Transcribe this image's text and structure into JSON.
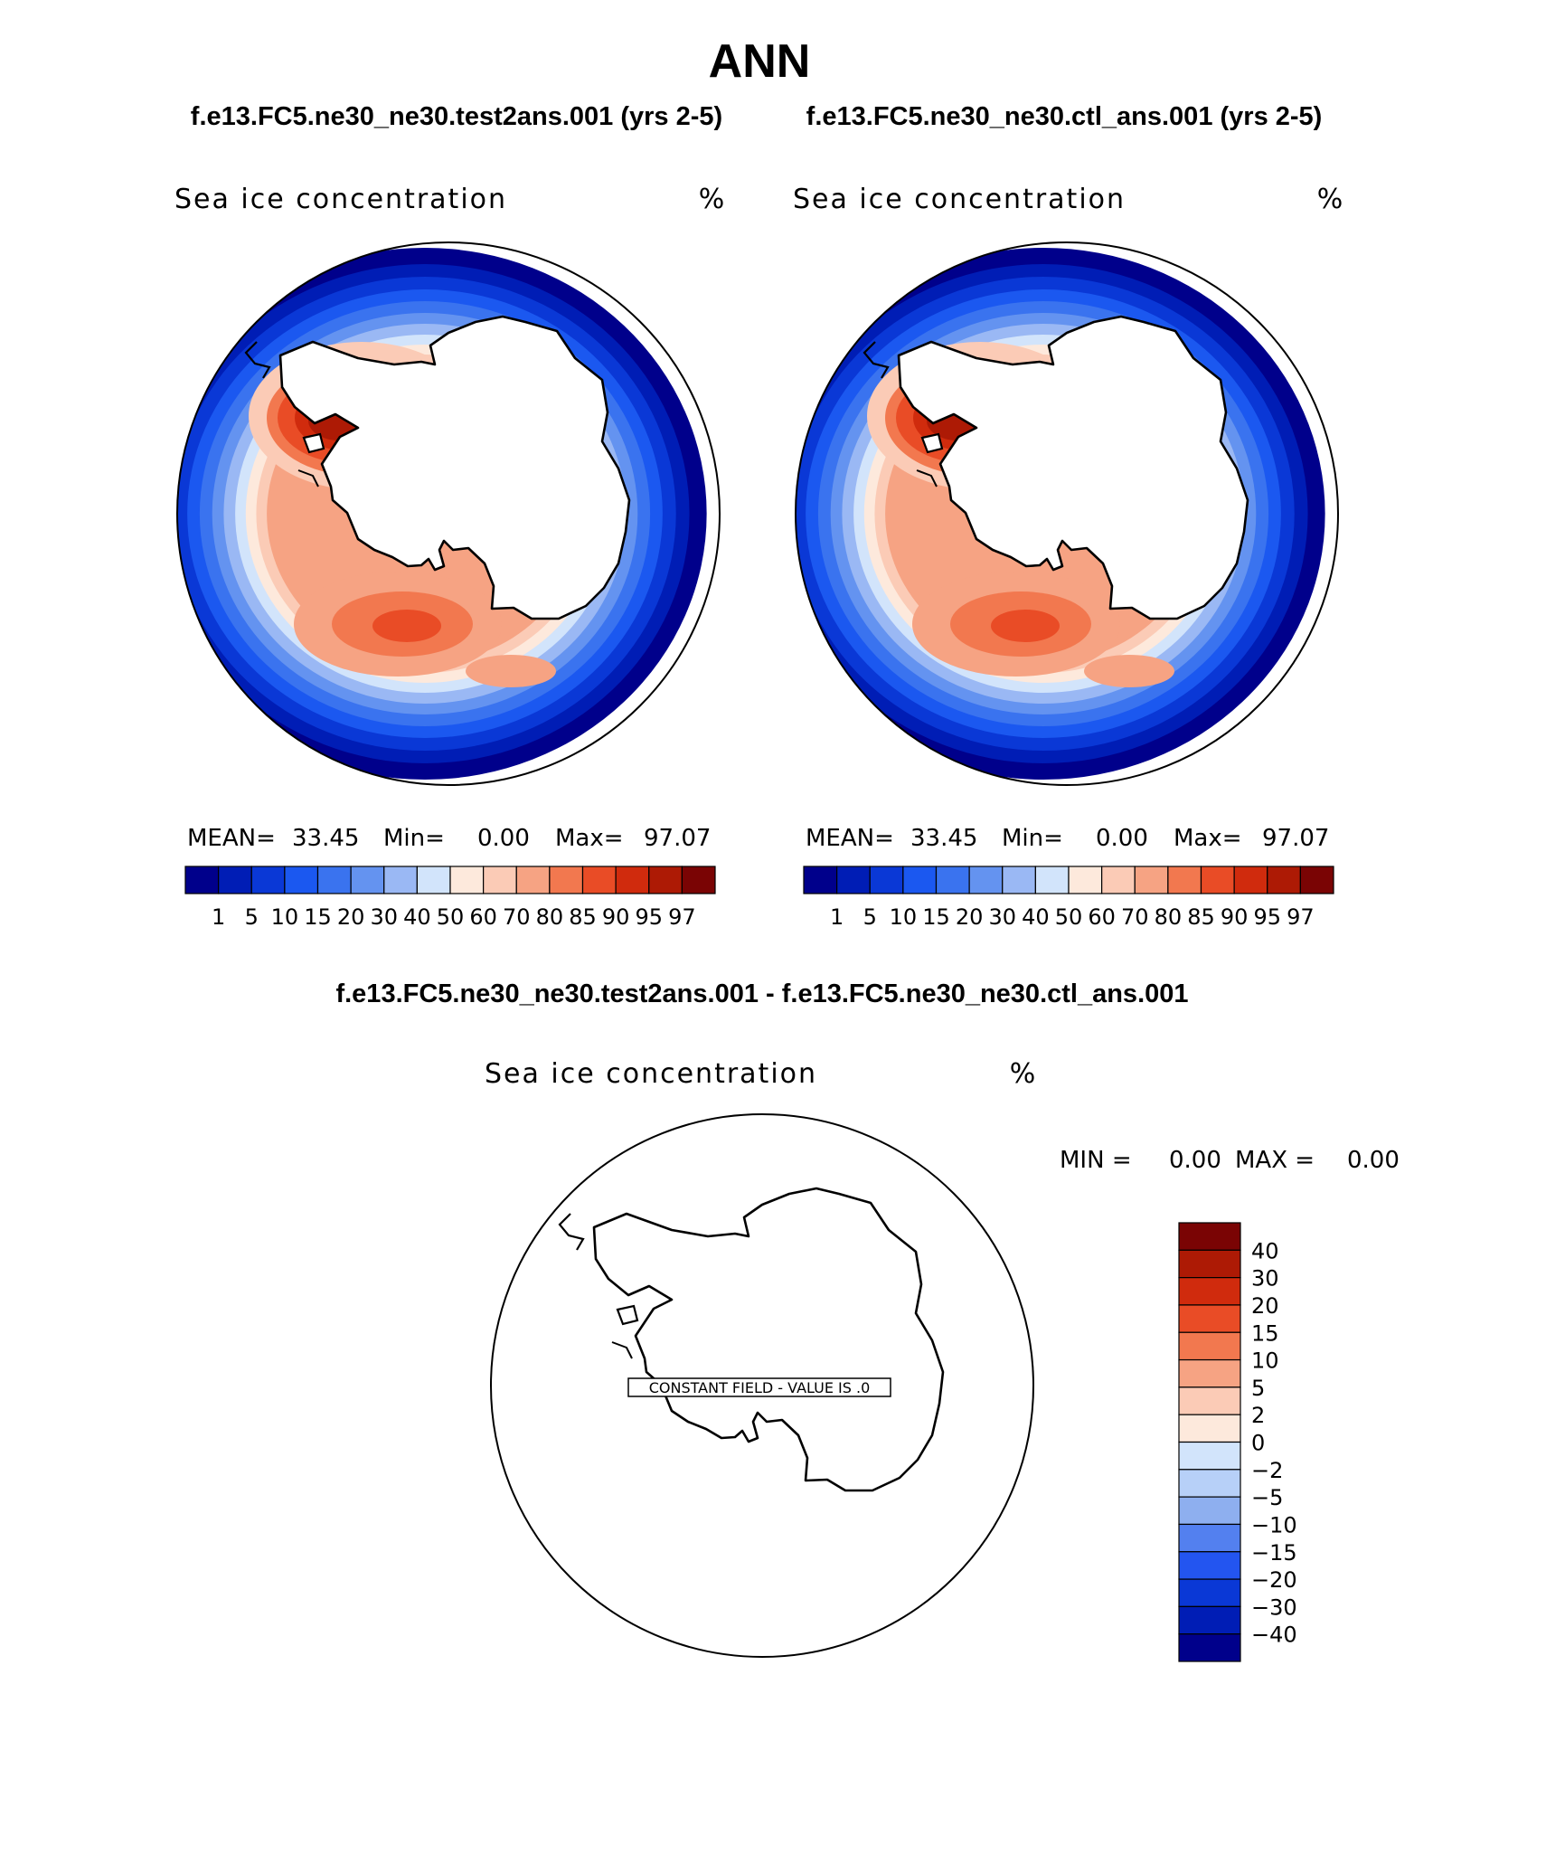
{
  "chart_data": {
    "type": "polar-contour-map",
    "title": "ANN",
    "panels": [
      {
        "case": "f.e13.FC5.ne30_ne30.test2ans.001 (yrs 2-5)",
        "variable": "Sea ice concentration",
        "units": "%",
        "stats": {
          "mean_label": "MEAN=",
          "mean": "33.45",
          "min_label": "Min=",
          "min": "0.00",
          "max_label": "Max=",
          "max": "97.07"
        },
        "levels": [
          "1",
          "5",
          "10",
          "15",
          "20",
          "30",
          "40",
          "50",
          "60",
          "70",
          "80",
          "85",
          "90",
          "95",
          "97"
        ]
      },
      {
        "case": "f.e13.FC5.ne30_ne30.ctl_ans.001 (yrs 2-5)",
        "variable": "Sea ice concentration",
        "units": "%",
        "stats": {
          "mean_label": "MEAN=",
          "mean": "33.45",
          "min_label": "Min=",
          "min": "0.00",
          "max_label": "Max=",
          "max": "97.07"
        },
        "levels": [
          "1",
          "5",
          "10",
          "15",
          "20",
          "30",
          "40",
          "50",
          "60",
          "70",
          "80",
          "85",
          "90",
          "95",
          "97"
        ]
      }
    ],
    "difference": {
      "title": "f.e13.FC5.ne30_ne30.test2ans.001 - f.e13.FC5.ne30_ne30.ctl_ans.001",
      "variable": "Sea ice concentration",
      "units": "%",
      "min_label": "MIN =",
      "min": "0.00",
      "max_label": "MAX =",
      "max": "0.00",
      "annotation": "CONSTANT FIELD - VALUE IS .0",
      "levels": [
        "40",
        "30",
        "20",
        "15",
        "10",
        "5",
        "2",
        "0",
        "−2",
        "−5",
        "−10",
        "−15",
        "−20",
        "−30",
        "−40"
      ]
    },
    "colors": {
      "abs_palette": [
        "#00008b",
        "#001db5",
        "#0a38d6",
        "#1b58f0",
        "#3a73ef",
        "#6493f0",
        "#9ab8f4",
        "#d2e4fb",
        "#fde9dc",
        "#fbcbb6",
        "#f6a383",
        "#f2784f",
        "#e94c26",
        "#d02b0d",
        "#ad1a05",
        "#7a0404"
      ],
      "diff_palette": [
        "#7a0404",
        "#ad1a05",
        "#d02b0d",
        "#e94c26",
        "#f2784f",
        "#f6a383",
        "#fbcbb6",
        "#fde9dc",
        "#d2e4fb",
        "#b7d0f8",
        "#8eafef",
        "#5380ef",
        "#2355f0",
        "#0a38d6",
        "#001db5",
        "#00008b"
      ]
    }
  }
}
